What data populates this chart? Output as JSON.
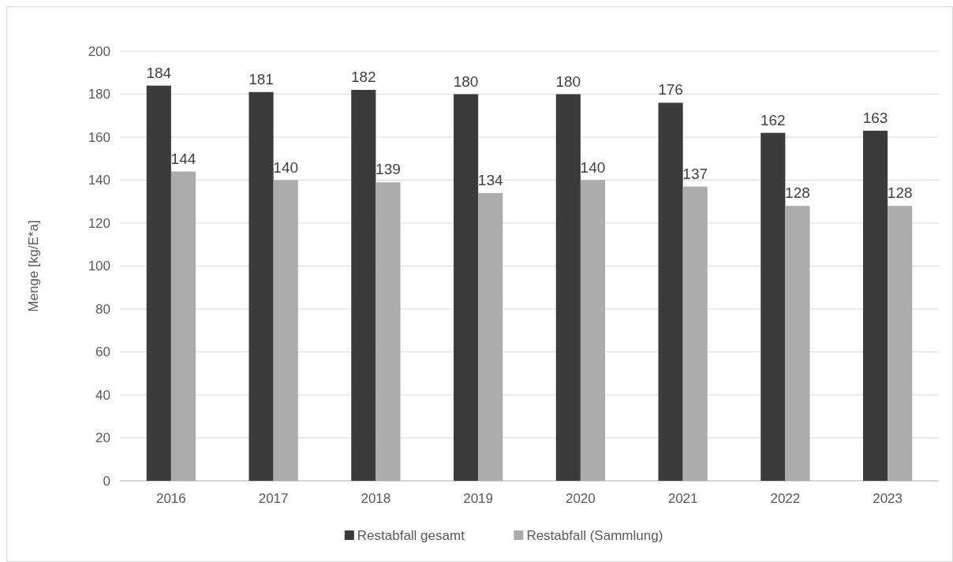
{
  "chart_data": {
    "type": "bar",
    "ylabel": "Menge [kg/E*a]",
    "categories": [
      "2016",
      "2017",
      "2018",
      "2019",
      "2020",
      "2021",
      "2022",
      "2023"
    ],
    "series": [
      {
        "name": "Restabfall gesamt",
        "color": "#3b3b39",
        "values": [
          184,
          181,
          182,
          180,
          180,
          176,
          162,
          163
        ]
      },
      {
        "name": "Restabfall (Sammlung)",
        "color": "#aeabab",
        "values": [
          144,
          140,
          139,
          134,
          140,
          137,
          128,
          128
        ]
      }
    ],
    "ylim": [
      0,
      200
    ],
    "yticks": [
      0,
      20,
      40,
      60,
      80,
      100,
      120,
      140,
      160,
      180,
      200
    ],
    "grid": "y",
    "legend": "bottom",
    "data_labels": true
  }
}
